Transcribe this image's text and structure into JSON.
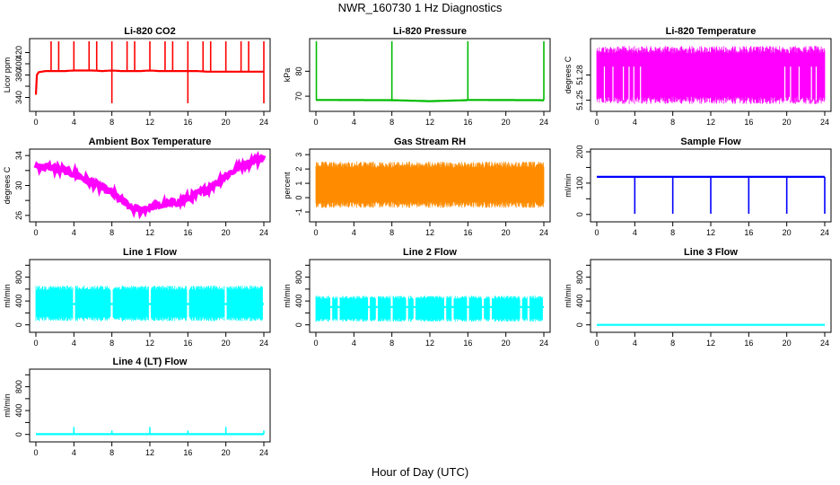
{
  "page": {
    "title": "NWR_160730  1 Hz Diagnostics",
    "xlabel": "Hour of Day (UTC)"
  },
  "chart_data": [
    {
      "type": "line",
      "title": "Li-820 CO2",
      "xlabel": "",
      "ylabel": "Licor ppm",
      "color": "#ff0000",
      "xlim": [
        0,
        24
      ],
      "ylim": [
        320,
        440
      ],
      "xticks": [
        0,
        4,
        8,
        12,
        16,
        20,
        24
      ],
      "yticks": [
        340,
        360,
        380,
        400,
        420
      ],
      "yticklabels": [
        "340",
        "",
        "380",
        "400",
        "420"
      ],
      "series": [
        {
          "name": "",
          "x": [
            0,
            0.1,
            0.3,
            1,
            2,
            3,
            4,
            5,
            6,
            7,
            8,
            9,
            10,
            11,
            12,
            13,
            14,
            15,
            16,
            17,
            18,
            19,
            20,
            21,
            22,
            23,
            24
          ],
          "y": [
            345,
            380,
            385,
            387,
            387,
            387,
            388,
            388,
            388,
            387,
            388,
            387,
            387,
            387,
            388,
            387,
            387,
            387,
            387,
            387,
            386,
            386,
            386,
            386,
            386,
            386,
            386
          ]
        }
      ],
      "spikes_up": [
        1.6,
        2.4,
        4.0,
        5.6,
        6.4,
        8.0,
        9.6,
        10.4,
        12.0,
        13.6,
        14.4,
        16.0,
        17.6,
        18.4,
        20.0,
        21.6,
        22.4,
        24.0
      ],
      "spikes_down": [
        8.0,
        16.0,
        24.0
      ]
    },
    {
      "type": "line",
      "title": "Li-820 Pressure",
      "xlabel": "",
      "ylabel": "kPa",
      "color": "#00bb00",
      "xlim": [
        0,
        24
      ],
      "ylim": [
        65,
        92
      ],
      "xticks": [
        0,
        4,
        8,
        12,
        16,
        20,
        24
      ],
      "yticks": [
        70,
        80
      ],
      "yticklabels": [
        "70",
        "80"
      ],
      "series": [
        {
          "name": "",
          "x": [
            0,
            0.3,
            8,
            8.2,
            12,
            15.8,
            16,
            16.2,
            23.8,
            24
          ],
          "y": [
            68.5,
            68.5,
            68.4,
            68.4,
            68.0,
            68.4,
            68.5,
            68.5,
            68.4,
            68.4
          ]
        }
      ],
      "spikes_up": [
        0.05,
        8.0,
        16.0,
        24.0
      ]
    },
    {
      "type": "line",
      "title": "Li-820 Temperature",
      "xlabel": "",
      "ylabel": "degrees C",
      "color": "#ff00ff",
      "xlim": [
        0,
        24
      ],
      "ylim": [
        51.24,
        51.32
      ],
      "xticks": [
        0,
        4,
        8,
        12,
        16,
        20,
        24
      ],
      "yticks": [
        51.25,
        51.28
      ],
      "yticklabels": [
        "51.25",
        "51.28"
      ],
      "band": [
        51.25,
        51.31
      ],
      "series": [
        {
          "name": "",
          "x": [
            0,
            24
          ],
          "y": [
            51.28,
            51.28
          ]
        }
      ]
    },
    {
      "type": "line",
      "title": "Ambient Box Temperature",
      "xlabel": "",
      "ylabel": "degrees C",
      "color": "#ff00ff",
      "xlim": [
        0,
        24
      ],
      "ylim": [
        25.5,
        34.5
      ],
      "xticks": [
        0,
        4,
        8,
        12,
        16,
        20,
        24
      ],
      "yticks": [
        26,
        28,
        30,
        32,
        34
      ],
      "yticklabels": [
        "26",
        "",
        "30",
        "",
        "34"
      ],
      "series": [
        {
          "name": "",
          "x": [
            0,
            2,
            4,
            6,
            8,
            9,
            10,
            11,
            12,
            14,
            16,
            18,
            20,
            22,
            24
          ],
          "y": [
            32.6,
            32.3,
            31.6,
            30.3,
            29.0,
            28.0,
            27.0,
            26.7,
            27.1,
            27.5,
            28.2,
            29.5,
            31.3,
            32.9,
            33.7
          ]
        }
      ]
    },
    {
      "type": "scatter",
      "title": "Gas Stream RH",
      "xlabel": "",
      "ylabel": "percent",
      "color": "#ff8c00",
      "xlim": [
        0,
        24
      ],
      "ylim": [
        -1.5,
        3.2
      ],
      "xticks": [
        0,
        4,
        8,
        12,
        16,
        20,
        24
      ],
      "yticks": [
        -1,
        0,
        1,
        2,
        3
      ],
      "yticklabels": [
        "-1",
        "0",
        "1",
        "2",
        "3"
      ],
      "band": [
        -0.5,
        2.3
      ],
      "series": [
        {
          "name": "",
          "x": [
            0,
            24
          ],
          "y": [
            0.9,
            0.9
          ]
        }
      ]
    },
    {
      "type": "line",
      "title": "Sample Flow",
      "xlabel": "",
      "ylabel": "ml/min",
      "color": "#0000ff",
      "xlim": [
        0,
        24
      ],
      "ylim": [
        -15,
        200
      ],
      "xticks": [
        0,
        4,
        8,
        12,
        16,
        20,
        24
      ],
      "yticks": [
        0,
        50,
        100,
        150,
        200
      ],
      "yticklabels": [
        "0",
        "",
        "100",
        "",
        "200"
      ],
      "series": [
        {
          "name": "",
          "x": [
            0,
            24
          ],
          "y": [
            120,
            120
          ]
        }
      ],
      "spikes_down": [
        4.0,
        8.0,
        12.0,
        16.0,
        20.0,
        24.0
      ]
    },
    {
      "type": "line",
      "title": "Line 1 Flow",
      "xlabel": "",
      "ylabel": "ml/min",
      "color": "#00ffff",
      "xlim": [
        0,
        24
      ],
      "ylim": [
        -80,
        1050
      ],
      "xticks": [
        0,
        4,
        8,
        12,
        16,
        20,
        24
      ],
      "yticks": [
        0,
        200,
        400,
        600,
        800,
        1000
      ],
      "yticklabels": [
        "0",
        "",
        "400",
        "",
        "800",
        ""
      ],
      "band": [
        100,
        620
      ],
      "gaps": [
        4.0,
        8.0,
        12.0,
        16.0,
        20.0,
        24.0
      ],
      "series": [
        {
          "name": "",
          "x": [
            0,
            24
          ],
          "y": [
            350,
            350
          ]
        }
      ]
    },
    {
      "type": "line",
      "title": "Line 2 Flow",
      "xlabel": "",
      "ylabel": "ml/min",
      "color": "#00ffff",
      "xlim": [
        0,
        24
      ],
      "ylim": [
        -80,
        1050
      ],
      "xticks": [
        0,
        4,
        8,
        12,
        16,
        20,
        24
      ],
      "yticks": [
        0,
        200,
        400,
        600,
        800,
        1000
      ],
      "yticklabels": [
        "0",
        "",
        "400",
        "",
        "800",
        ""
      ],
      "band": [
        80,
        460
      ],
      "gaps": [
        1.6,
        2.4,
        5.6,
        6.4,
        8.0,
        9.6,
        10.4,
        13.6,
        14.4,
        16.0,
        17.6,
        18.4,
        21.6,
        22.4,
        24.0
      ],
      "series": [
        {
          "name": "",
          "x": [
            0,
            24
          ],
          "y": [
            300,
            300
          ]
        }
      ]
    },
    {
      "type": "line",
      "title": "Line 3 Flow",
      "xlabel": "",
      "ylabel": "ml/min",
      "color": "#00ffff",
      "xlim": [
        0,
        24
      ],
      "ylim": [
        -80,
        1050
      ],
      "xticks": [
        0,
        4,
        8,
        12,
        16,
        20,
        24
      ],
      "yticks": [
        0,
        200,
        400,
        600,
        800,
        1000
      ],
      "yticklabels": [
        "0",
        "",
        "400",
        "",
        "800",
        ""
      ],
      "series": [
        {
          "name": "",
          "x": [
            0,
            24
          ],
          "y": [
            0,
            0
          ]
        }
      ]
    },
    {
      "type": "line",
      "title": "Line 4 (LT) Flow",
      "xlabel": "",
      "ylabel": "ml/min",
      "color": "#00ffff",
      "xlim": [
        0,
        24
      ],
      "ylim": [
        -80,
        1050
      ],
      "xticks": [
        0,
        4,
        8,
        12,
        16,
        20,
        24
      ],
      "yticks": [
        0,
        200,
        400,
        600,
        800,
        1000
      ],
      "yticklabels": [
        "0",
        "",
        "400",
        "",
        "800",
        ""
      ],
      "series": [
        {
          "name": "",
          "x": [
            0,
            24
          ],
          "y": [
            5,
            5
          ]
        }
      ],
      "spikes_up": [
        4.0,
        8.0,
        12.0,
        16.0,
        20.0,
        24.0
      ],
      "spike_heights": [
        120,
        60,
        120,
        60,
        120,
        60
      ]
    }
  ]
}
